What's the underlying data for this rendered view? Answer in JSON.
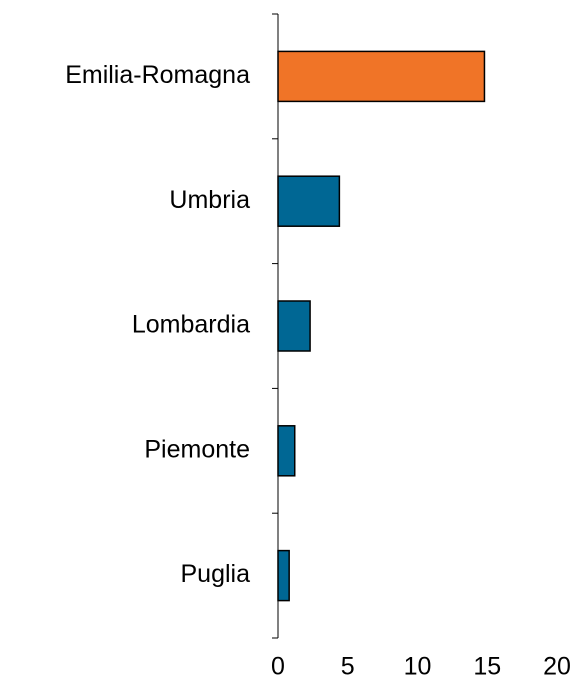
{
  "chart_data": {
    "type": "bar",
    "orientation": "horizontal",
    "categories": [
      "Emilia-Romagna",
      "Umbria",
      "Lombardia",
      "Piemonte",
      "Puglia"
    ],
    "values": [
      14.8,
      4.4,
      2.3,
      1.2,
      0.8
    ],
    "colors": [
      "#f07427",
      "#006794",
      "#006794",
      "#006794",
      "#006794"
    ],
    "xlim": [
      0,
      20
    ],
    "xticks": [
      0,
      5,
      10,
      15,
      20
    ]
  }
}
